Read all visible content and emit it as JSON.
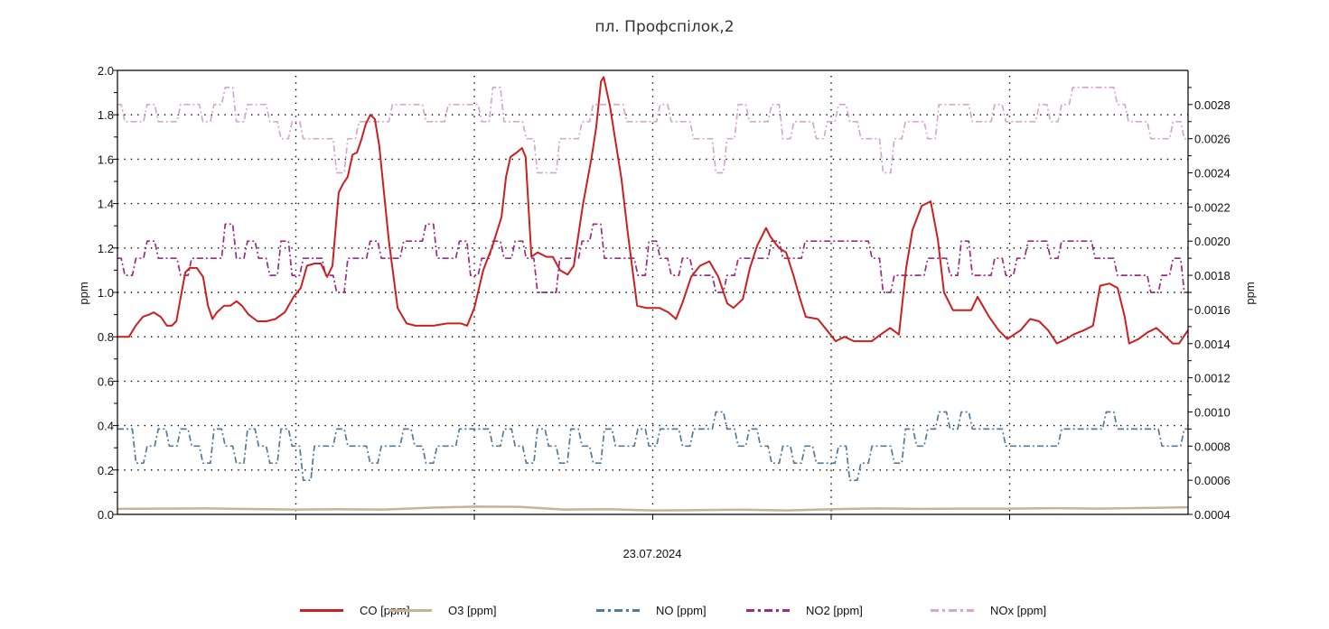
{
  "chart_data": {
    "type": "line",
    "title": "пл. Профспілок,2",
    "xlabel": "23.07.2024",
    "ylabel_left": "ppm",
    "ylabel_right": "ppm",
    "x_unit": "hour of day",
    "xlim": [
      0,
      24
    ],
    "ylim_left": [
      0,
      2.0
    ],
    "ylim_right": [
      0.0004,
      0.003
    ],
    "left_ticks": [
      "0.0",
      "0.2",
      "0.4",
      "0.6",
      "0.8",
      "1.0",
      "1.2",
      "1.4",
      "1.6",
      "1.8",
      "2.0"
    ],
    "right_ticks": [
      "0.0004",
      "0.0006",
      "0.0008",
      "0.0010",
      "0.0012",
      "0.0014",
      "0.0016",
      "0.0018",
      "0.0020",
      "0.0022",
      "0.0024",
      "0.0026",
      "0.0028"
    ],
    "grid": "dotted",
    "legend_position": "bottom",
    "series": [
      {
        "name": "CO [ppm]",
        "axis": "left",
        "color": "#cc1f1f",
        "dash": "solid",
        "points": [
          [
            0,
            0.8
          ],
          [
            0.26,
            0.8
          ],
          [
            0.41,
            0.85
          ],
          [
            0.57,
            0.89
          ],
          [
            0.71,
            0.9
          ],
          [
            0.81,
            0.91
          ],
          [
            0.97,
            0.89
          ],
          [
            1.11,
            0.85
          ],
          [
            1.22,
            0.85
          ],
          [
            1.32,
            0.87
          ],
          [
            1.42,
            0.98
          ],
          [
            1.52,
            1.09
          ],
          [
            1.62,
            1.11
          ],
          [
            1.78,
            1.11
          ],
          [
            1.92,
            1.07
          ],
          [
            2.03,
            0.94
          ],
          [
            2.13,
            0.88
          ],
          [
            2.23,
            0.91
          ],
          [
            2.39,
            0.94
          ],
          [
            2.53,
            0.94
          ],
          [
            2.67,
            0.96
          ],
          [
            2.79,
            0.94
          ],
          [
            2.94,
            0.9
          ],
          [
            3.14,
            0.87
          ],
          [
            3.34,
            0.87
          ],
          [
            3.54,
            0.88
          ],
          [
            3.75,
            0.91
          ],
          [
            3.95,
            0.98
          ],
          [
            4.11,
            1.02
          ],
          [
            4.25,
            1.12
          ],
          [
            4.42,
            1.13
          ],
          [
            4.56,
            1.13
          ],
          [
            4.7,
            1.07
          ],
          [
            4.82,
            1.12
          ],
          [
            4.96,
            1.45
          ],
          [
            5.06,
            1.49
          ],
          [
            5.16,
            1.52
          ],
          [
            5.27,
            1.62
          ],
          [
            5.37,
            1.63
          ],
          [
            5.47,
            1.69
          ],
          [
            5.57,
            1.76
          ],
          [
            5.67,
            1.8
          ],
          [
            5.77,
            1.78
          ],
          [
            5.87,
            1.66
          ],
          [
            6.08,
            1.24
          ],
          [
            6.28,
            0.93
          ],
          [
            6.48,
            0.86
          ],
          [
            6.68,
            0.85
          ],
          [
            7.09,
            0.85
          ],
          [
            7.39,
            0.86
          ],
          [
            7.7,
            0.86
          ],
          [
            7.84,
            0.85
          ],
          [
            8.0,
            0.93
          ],
          [
            8.2,
            1.1
          ],
          [
            8.41,
            1.21
          ],
          [
            8.61,
            1.34
          ],
          [
            8.71,
            1.52
          ],
          [
            8.81,
            1.61
          ],
          [
            8.95,
            1.63
          ],
          [
            9.07,
            1.65
          ],
          [
            9.15,
            1.61
          ],
          [
            9.28,
            1.16
          ],
          [
            9.42,
            1.18
          ],
          [
            9.62,
            1.16
          ],
          [
            9.76,
            1.16
          ],
          [
            9.92,
            1.1
          ],
          [
            10.09,
            1.08
          ],
          [
            10.23,
            1.12
          ],
          [
            10.43,
            1.39
          ],
          [
            10.63,
            1.61
          ],
          [
            10.73,
            1.74
          ],
          [
            10.84,
            1.95
          ],
          [
            10.9,
            1.97
          ],
          [
            11.04,
            1.84
          ],
          [
            11.3,
            1.51
          ],
          [
            11.44,
            1.27
          ],
          [
            11.65,
            0.94
          ],
          [
            11.85,
            0.93
          ],
          [
            12.15,
            0.93
          ],
          [
            12.35,
            0.91
          ],
          [
            12.52,
            0.88
          ],
          [
            12.66,
            0.95
          ],
          [
            12.86,
            1.07
          ],
          [
            13.06,
            1.12
          ],
          [
            13.27,
            1.14
          ],
          [
            13.47,
            1.07
          ],
          [
            13.67,
            0.95
          ],
          [
            13.81,
            0.93
          ],
          [
            14.02,
            0.97
          ],
          [
            14.18,
            1.11
          ],
          [
            14.34,
            1.21
          ],
          [
            14.54,
            1.29
          ],
          [
            14.64,
            1.25
          ],
          [
            14.83,
            1.2
          ],
          [
            14.99,
            1.18
          ],
          [
            15.15,
            1.08
          ],
          [
            15.29,
            0.98
          ],
          [
            15.43,
            0.89
          ],
          [
            15.7,
            0.88
          ],
          [
            15.9,
            0.83
          ],
          [
            16.1,
            0.78
          ],
          [
            16.3,
            0.8
          ],
          [
            16.51,
            0.78
          ],
          [
            16.91,
            0.78
          ],
          [
            17.11,
            0.81
          ],
          [
            17.32,
            0.84
          ],
          [
            17.52,
            0.81
          ],
          [
            17.68,
            1.11
          ],
          [
            17.82,
            1.28
          ],
          [
            18.03,
            1.39
          ],
          [
            18.23,
            1.41
          ],
          [
            18.39,
            1.24
          ],
          [
            18.53,
            1.0
          ],
          [
            18.73,
            0.92
          ],
          [
            19.14,
            0.92
          ],
          [
            19.28,
            0.98
          ],
          [
            19.54,
            0.89
          ],
          [
            19.75,
            0.83
          ],
          [
            19.95,
            0.79
          ],
          [
            20.25,
            0.83
          ],
          [
            20.46,
            0.88
          ],
          [
            20.66,
            0.87
          ],
          [
            20.86,
            0.83
          ],
          [
            21.06,
            0.77
          ],
          [
            21.27,
            0.79
          ],
          [
            21.43,
            0.81
          ],
          [
            21.67,
            0.83
          ],
          [
            21.87,
            0.85
          ],
          [
            22.03,
            1.03
          ],
          [
            22.24,
            1.04
          ],
          [
            22.42,
            1.02
          ],
          [
            22.58,
            0.89
          ],
          [
            22.68,
            0.77
          ],
          [
            22.89,
            0.79
          ],
          [
            23.09,
            0.82
          ],
          [
            23.29,
            0.84
          ],
          [
            23.45,
            0.81
          ],
          [
            23.66,
            0.77
          ],
          [
            23.8,
            0.77
          ],
          [
            24.0,
            0.83
          ]
        ]
      },
      {
        "name": "O3 [ppm]",
        "axis": "left",
        "color": "#c8b396",
        "dash": "solid",
        "points": [
          [
            0,
            0.025
          ],
          [
            2,
            0.027
          ],
          [
            4,
            0.022
          ],
          [
            5,
            0.023
          ],
          [
            6,
            0.022
          ],
          [
            7,
            0.03
          ],
          [
            8,
            0.035
          ],
          [
            9,
            0.034
          ],
          [
            10,
            0.022
          ],
          [
            11,
            0.023
          ],
          [
            12,
            0.018
          ],
          [
            13,
            0.019
          ],
          [
            14,
            0.021
          ],
          [
            15,
            0.018
          ],
          [
            16,
            0.023
          ],
          [
            17,
            0.027
          ],
          [
            18,
            0.025
          ],
          [
            19,
            0.026
          ],
          [
            20,
            0.026
          ],
          [
            21,
            0.028
          ],
          [
            22,
            0.026
          ],
          [
            23,
            0.029
          ],
          [
            24,
            0.032
          ]
        ]
      },
      {
        "name": "NO [ppm]",
        "axis": "right",
        "color": "#4f7c9c",
        "dash": "dashdot",
        "x_step": 0.25,
        "values": [
          0.0009,
          0.0009,
          0.0007,
          0.0008,
          0.0009,
          0.0008,
          0.0009,
          0.0008,
          0.0007,
          0.0009,
          0.0008,
          0.0007,
          0.0009,
          0.0008,
          0.0007,
          0.0009,
          0.0008,
          0.0006,
          0.0008,
          0.0008,
          0.0009,
          0.0008,
          0.0008,
          0.0007,
          0.0008,
          0.0008,
          0.0009,
          0.0008,
          0.0007,
          0.0008,
          0.0008,
          0.0009,
          0.0009,
          0.0009,
          0.0008,
          0.0009,
          0.0008,
          0.0007,
          0.0009,
          0.0008,
          0.0007,
          0.0009,
          0.0008,
          0.0007,
          0.0009,
          0.0008,
          0.0008,
          0.0009,
          0.0008,
          0.0009,
          0.0009,
          0.0008,
          0.0009,
          0.0009,
          0.001,
          0.0009,
          0.0008,
          0.0009,
          0.0008,
          0.0007,
          0.0008,
          0.0007,
          0.0008,
          0.0007,
          0.0007,
          0.0008,
          0.0006,
          0.0007,
          0.0008,
          0.0008,
          0.0007,
          0.0009,
          0.0008,
          0.0009,
          0.001,
          0.0009,
          0.001,
          0.0009,
          0.0009,
          0.0009,
          0.0008,
          0.0008,
          0.0008,
          0.0008,
          0.0008,
          0.0009,
          0.0009,
          0.0009,
          0.0009,
          0.001,
          0.0009,
          0.0009,
          0.0009,
          0.0009,
          0.0008,
          0.0008,
          0.0009
        ]
      },
      {
        "name": "NO2 [ppm]",
        "axis": "right",
        "color": "#9c2a86",
        "dash": "dashdot",
        "x_step": 0.25,
        "values": [
          0.0019,
          0.0018,
          0.0019,
          0.002,
          0.0019,
          0.0019,
          0.0018,
          0.0019,
          0.0019,
          0.0019,
          0.0021,
          0.0019,
          0.002,
          0.0019,
          0.0018,
          0.002,
          0.0018,
          0.0019,
          0.0019,
          0.0018,
          0.0017,
          0.0019,
          0.0019,
          0.002,
          0.0019,
          0.0019,
          0.002,
          0.002,
          0.0021,
          0.0019,
          0.0019,
          0.002,
          0.0018,
          0.0019,
          0.002,
          0.0019,
          0.002,
          0.0019,
          0.0017,
          0.0017,
          0.0019,
          0.0019,
          0.002,
          0.0021,
          0.0019,
          0.0019,
          0.0019,
          0.0018,
          0.002,
          0.0019,
          0.0018,
          0.0019,
          0.0018,
          0.0018,
          0.0017,
          0.0018,
          0.0019,
          0.0019,
          0.0019,
          0.002,
          0.0019,
          0.0019,
          0.002,
          0.002,
          0.002,
          0.002,
          0.002,
          0.002,
          0.0019,
          0.0017,
          0.0018,
          0.0018,
          0.0018,
          0.0019,
          0.0019,
          0.0018,
          0.002,
          0.0018,
          0.0018,
          0.0019,
          0.0018,
          0.0019,
          0.002,
          0.002,
          0.0019,
          0.002,
          0.002,
          0.002,
          0.0019,
          0.0019,
          0.0018,
          0.0018,
          0.0018,
          0.0017,
          0.0018,
          0.0019,
          0.0017
        ]
      },
      {
        "name": "NOx [ppm]",
        "axis": "right",
        "color": "#d6a6d2",
        "dash": "dashdot",
        "x_step": 0.25,
        "values": [
          0.0028,
          0.0027,
          0.0027,
          0.0028,
          0.0027,
          0.0027,
          0.0028,
          0.0028,
          0.0027,
          0.0028,
          0.0029,
          0.0027,
          0.0028,
          0.0028,
          0.0027,
          0.0026,
          0.0027,
          0.0026,
          0.0026,
          0.0026,
          0.0024,
          0.0026,
          0.0027,
          0.0027,
          0.0027,
          0.0028,
          0.0028,
          0.0028,
          0.0027,
          0.0027,
          0.0028,
          0.0028,
          0.0028,
          0.0027,
          0.0029,
          0.0027,
          0.0027,
          0.0026,
          0.0024,
          0.0024,
          0.0026,
          0.0026,
          0.0027,
          0.0028,
          0.0028,
          0.0028,
          0.0027,
          0.0027,
          0.0027,
          0.0028,
          0.0027,
          0.0027,
          0.0026,
          0.0026,
          0.0024,
          0.0026,
          0.0028,
          0.0027,
          0.0027,
          0.0028,
          0.0026,
          0.0027,
          0.0027,
          0.0026,
          0.0027,
          0.0028,
          0.0027,
          0.0026,
          0.0026,
          0.0024,
          0.0026,
          0.0027,
          0.0027,
          0.0026,
          0.0028,
          0.0028,
          0.0028,
          0.0027,
          0.0027,
          0.0028,
          0.0027,
          0.0027,
          0.0027,
          0.0028,
          0.0027,
          0.0028,
          0.0029,
          0.0029,
          0.0029,
          0.0029,
          0.0028,
          0.0027,
          0.0027,
          0.0026,
          0.0026,
          0.0027,
          0.0026
        ]
      }
    ]
  }
}
